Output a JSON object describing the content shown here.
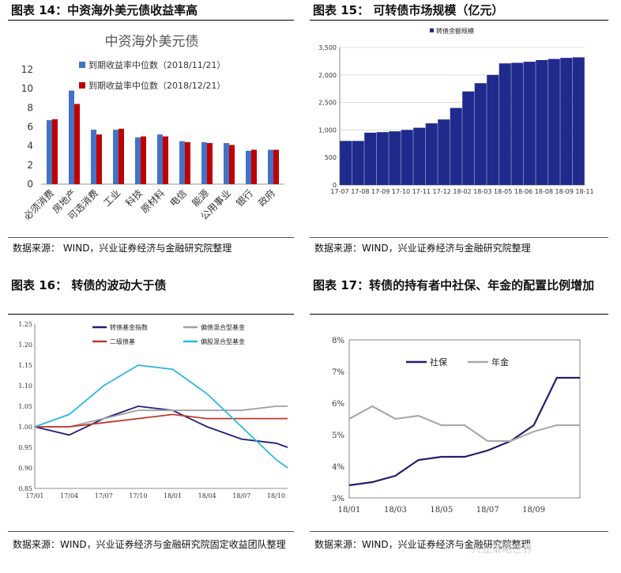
{
  "panels": {
    "p14": {
      "title": "图表 14：中资海外美元债收益率高",
      "source": "数据来源： WIND，兴业证券经济与金融研究院整理"
    },
    "p15": {
      "title": "图表 15：   可转债市场规模（亿元）",
      "source": "数据来源：WIND，兴业证券经济与金融研究院整理"
    },
    "p16": {
      "title": "图表 16：   转债的波动大于债",
      "source": "数据来源：WIND，兴业证券经济与金融研究院固定收益团队整理"
    },
    "p17": {
      "title": "图表 17：转债的持有者中社保、年金的配置比例增加",
      "source": "数据来源：WIND，兴业证券经济与金融研究院整理"
    }
  },
  "watermark": "兴业策略世界",
  "chart_data": [
    {
      "id": "p14",
      "type": "bar",
      "title": "中资海外美元债",
      "categories": [
        "必须消费",
        "房地产",
        "可选消费",
        "工业",
        "科技",
        "原材料",
        "电信",
        "能源",
        "公用事业",
        "银行",
        "政府"
      ],
      "series": [
        {
          "name": "到期收益率中位数（2018/11/21）",
          "color": "#4472c4",
          "values": [
            6.7,
            9.8,
            5.7,
            5.7,
            4.9,
            5.2,
            4.5,
            4.4,
            4.3,
            3.5,
            3.6
          ]
        },
        {
          "name": "到期收益率中位数（2018/12/21）",
          "color": "#c00000",
          "values": [
            6.8,
            8.4,
            5.2,
            5.8,
            5.0,
            5.0,
            4.4,
            4.3,
            4.1,
            3.6,
            3.6
          ]
        }
      ],
      "yticks": [
        0,
        2,
        4,
        6,
        8,
        10,
        12
      ],
      "ylim": [
        0,
        12
      ],
      "legend": "top-right",
      "grid": false
    },
    {
      "id": "p15",
      "type": "bar",
      "series": [
        {
          "name": "转债余额规模",
          "color": "#1f2a8c",
          "points": [
            [
              "17-07",
              800
            ],
            [
              "17-08",
              800
            ],
            [
              "17-08",
              950
            ],
            [
              "17-09",
              960
            ],
            [
              "17-10",
              975
            ],
            [
              "17-11",
              1000
            ],
            [
              "17-12",
              1040
            ],
            [
              "18-01",
              1120
            ],
            [
              "18-02",
              1190
            ],
            [
              "18-03",
              1400
            ],
            [
              "18-04",
              1700
            ],
            [
              "18-05",
              1850
            ],
            [
              "18-06",
              2000
            ],
            [
              "18-06",
              2210
            ],
            [
              "18-07",
              2220
            ],
            [
              "18-08",
              2240
            ],
            [
              "18-09",
              2270
            ],
            [
              "18-10",
              2290
            ],
            [
              "18-11",
              2310
            ],
            [
              "18-11",
              2320
            ]
          ]
        }
      ],
      "xticks": [
        "17-07",
        "17-08",
        "17-09",
        "17-10",
        "17-11",
        "17-12",
        "18-02",
        "18-03",
        "18-05",
        "18-06",
        "18-08",
        "18-09",
        "18-11"
      ],
      "yticks": [
        0,
        500,
        1000,
        1500,
        2000,
        2500
      ],
      "ylim": [
        0,
        2500
      ],
      "legend": "top-left",
      "grid": true
    },
    {
      "id": "p16",
      "type": "line",
      "xticks": [
        "17/01",
        "17/04",
        "17/07",
        "17/10",
        "18/01",
        "18/04",
        "18/07",
        "18/10"
      ],
      "yticks": [
        0.85,
        0.9,
        0.95,
        1.0,
        1.05,
        1.1,
        1.15,
        1.2,
        1.25
      ],
      "ylim": [
        0.85,
        1.25
      ],
      "legend": "top",
      "grid": false,
      "series": [
        {
          "name": "转债基金指数",
          "color": "#1f1f7a",
          "x": [
            0,
            3,
            6,
            9,
            12,
            15,
            18,
            21,
            22
          ],
          "y": [
            1.0,
            0.98,
            1.02,
            1.05,
            1.04,
            1.0,
            0.97,
            0.96,
            0.95
          ]
        },
        {
          "name": "偏债混合型基金",
          "color": "#a0a0a0",
          "x": [
            0,
            3,
            6,
            9,
            12,
            15,
            18,
            21,
            22
          ],
          "y": [
            1.0,
            1.0,
            1.02,
            1.04,
            1.04,
            1.04,
            1.04,
            1.05,
            1.05
          ]
        },
        {
          "name": "二级债基",
          "color": "#c0392b",
          "x": [
            0,
            3,
            6,
            9,
            12,
            15,
            18,
            21,
            22
          ],
          "y": [
            1.0,
            1.0,
            1.01,
            1.02,
            1.03,
            1.02,
            1.02,
            1.02,
            1.02
          ]
        },
        {
          "name": "偏股混合型基金",
          "color": "#2bb6e6",
          "x": [
            0,
            3,
            6,
            9,
            12,
            15,
            18,
            21,
            22
          ],
          "y": [
            1.0,
            1.03,
            1.1,
            1.15,
            1.14,
            1.08,
            1.0,
            0.92,
            0.9
          ]
        }
      ]
    },
    {
      "id": "p17",
      "type": "line",
      "xticks": [
        "18/01",
        "18/03",
        "18/05",
        "18/07",
        "18/09"
      ],
      "yticks": [
        "3%",
        "4%",
        "5%",
        "6%",
        "7%",
        "8%"
      ],
      "ylim": [
        3,
        8
      ],
      "legend": "top-left",
      "grid": false,
      "series": [
        {
          "name": "社保",
          "color": "#1f1f6e",
          "x": [
            0,
            1,
            2,
            3,
            4,
            5,
            6,
            7,
            8,
            9,
            10
          ],
          "y": [
            3.4,
            3.5,
            3.7,
            4.2,
            4.3,
            4.3,
            4.5,
            4.8,
            5.3,
            6.8,
            6.8
          ]
        },
        {
          "name": "年金",
          "color": "#aaaaaa",
          "x": [
            0,
            1,
            2,
            3,
            4,
            5,
            6,
            7,
            8,
            9,
            10
          ],
          "y": [
            5.5,
            5.9,
            5.5,
            5.6,
            5.3,
            5.3,
            4.8,
            4.8,
            5.1,
            5.3,
            5.3
          ]
        }
      ]
    }
  ]
}
